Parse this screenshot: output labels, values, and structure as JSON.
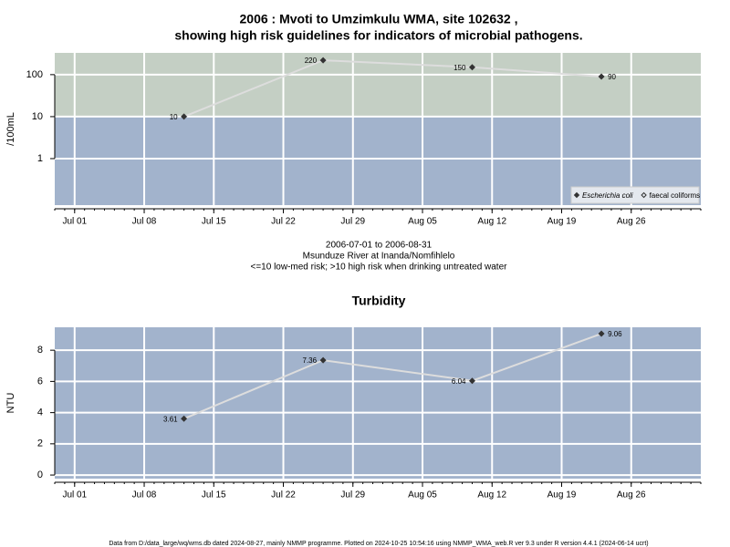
{
  "chart_data": [
    {
      "type": "line",
      "title": [
        "2006 : Mvoti to Umzimkulu WMA, site 102632 ,",
        "showing high risk guidelines for indicators of microbial pathogens."
      ],
      "y_label": "/100mL",
      "log_scale": true,
      "ylim": [
        0.078,
        330
      ],
      "yticks": [
        1,
        10,
        100
      ],
      "xlim": [
        "Jun 29",
        "Sep 02"
      ],
      "xticks": [
        "Jul 01",
        "Jul 08",
        "Jul 15",
        "Jul 22",
        "Jul 29",
        "Aug 05",
        "Aug 12",
        "Aug 19",
        "Aug 26"
      ],
      "x": [
        "Jul 12",
        "Jul 26",
        "Aug 10",
        "Aug 23"
      ],
      "series": [
        {
          "name": "Escherichia coli",
          "color": "#333333",
          "values": [
            10,
            220,
            150,
            90
          ]
        },
        {
          "name": "faecal coliforms",
          "color": "#333333",
          "values": [
            null,
            null,
            null,
            null
          ]
        }
      ],
      "threshold": 10,
      "high_color": "#c4cfc4",
      "low_color": "#a2b3cc",
      "grid": true,
      "legend": "bottom right",
      "notes": [
        "2006-07-01 to 2006-08-31",
        "Msunduze River at Inanda/Nomfihlelo",
        "<=10 low-med risk; >10 high risk when drinking untreated water"
      ]
    },
    {
      "type": "line",
      "title": [
        "Turbidity"
      ],
      "y_label": "NTU",
      "log_scale": false,
      "ylim": [
        -0.23,
        9.47
      ],
      "yticks": [
        0,
        2,
        4,
        6,
        8
      ],
      "xlim": [
        "Jun 29",
        "Sep 02"
      ],
      "xticks": [
        "Jul 01",
        "Jul 08",
        "Jul 15",
        "Jul 22",
        "Jul 29",
        "Aug 05",
        "Aug 12",
        "Aug 19",
        "Aug 26"
      ],
      "x": [
        "Jul 12",
        "Jul 26",
        "Aug 10",
        "Aug 23"
      ],
      "series": [
        {
          "name": "Turbidity",
          "color": "#333333",
          "values": [
            3.61,
            7.36,
            6.04,
            9.06
          ]
        }
      ],
      "low_color": "#a2b3cc",
      "grid": true
    }
  ],
  "footer": "Data from D:/data_large/wq/wms.db dated 2024-08-27, mainly NMMP programme. Plotted on 2024-10-25 10:54:16 using NMMP_WMA_web.R ver 9.3 under R version 4.4.1 (2024-06-14 ucrt)"
}
